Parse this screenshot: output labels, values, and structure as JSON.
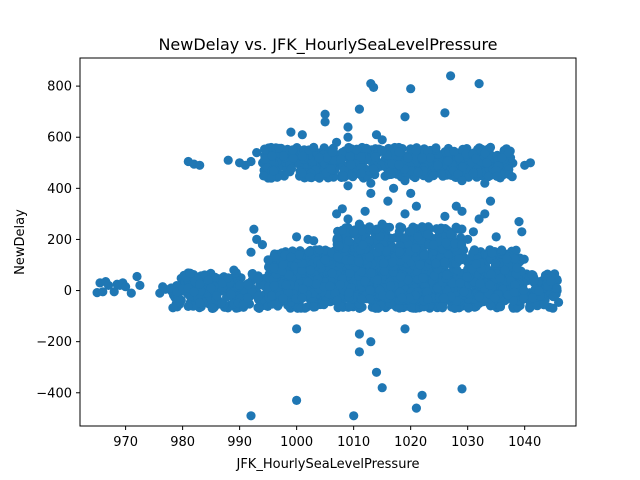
{
  "chart_data": {
    "type": "scatter",
    "title": "NewDelay vs. JFK_HourlySeaLevelPressure",
    "xlabel": "JFK_HourlySeaLevelPressure",
    "ylabel": "NewDelay",
    "xlim": [
      962.0,
      1049.0
    ],
    "ylim": [
      -530,
      910
    ],
    "xticks": [
      970,
      980,
      990,
      1000,
      1010,
      1020,
      1030,
      1040
    ],
    "yticks": [
      -400,
      -200,
      0,
      200,
      400,
      600,
      800
    ],
    "ytick_labels": [
      "−400",
      "−200",
      "0",
      "200",
      "400",
      "600",
      "800"
    ],
    "marker_color": "#1f77b4",
    "grid": false,
    "series": [
      {
        "name": "NewDelay",
        "points": [
          [
            965,
            -8
          ],
          [
            965.5,
            30
          ],
          [
            966,
            -5
          ],
          [
            966.5,
            35
          ],
          [
            967,
            20
          ],
          [
            968,
            -5
          ],
          [
            968.5,
            25
          ],
          [
            969,
            20
          ],
          [
            969.5,
            30
          ],
          [
            970,
            15
          ],
          [
            971,
            -10
          ],
          [
            972,
            55
          ],
          [
            972.5,
            20
          ],
          [
            976,
            -10
          ],
          [
            976.5,
            15
          ],
          [
            977,
            5
          ],
          [
            978,
            10
          ],
          [
            979,
            -5
          ],
          [
            980,
            8
          ],
          [
            981,
            10
          ],
          [
            982,
            -5
          ],
          [
            983,
            25
          ],
          [
            984,
            60
          ],
          [
            984.5,
            40
          ],
          [
            985,
            10
          ],
          [
            986,
            -20
          ],
          [
            987,
            30
          ],
          [
            988,
            50
          ],
          [
            989,
            80
          ],
          [
            990,
            20
          ],
          [
            992,
            150
          ],
          [
            993,
            200
          ],
          [
            992.5,
            240
          ],
          [
            994,
            180
          ],
          [
            995,
            120
          ],
          [
            996,
            90
          ],
          [
            998,
            140
          ],
          [
            999,
            130
          ],
          [
            1000,
            210
          ],
          [
            1002,
            200
          ],
          [
            1003,
            195
          ],
          [
            1005,
            120
          ],
          [
            1004,
            160
          ],
          [
            1007,
            300
          ],
          [
            1008,
            320
          ],
          [
            1009,
            280
          ],
          [
            1010,
            230
          ],
          [
            1011,
            260
          ],
          [
            1012,
            310
          ],
          [
            1013,
            380
          ],
          [
            1014,
            240
          ],
          [
            1015,
            260
          ],
          [
            1016,
            350
          ],
          [
            1017,
            400
          ],
          [
            1018,
            230
          ],
          [
            1019,
            300
          ],
          [
            1020,
            380
          ],
          [
            1021,
            330
          ],
          [
            1022,
            250
          ],
          [
            1023,
            220
          ],
          [
            1024,
            180
          ],
          [
            1025,
            240
          ],
          [
            1026,
            290
          ],
          [
            1027,
            220
          ],
          [
            1028,
            330
          ],
          [
            1029,
            310
          ],
          [
            1030,
            200
          ],
          [
            1031,
            230
          ],
          [
            1032,
            280
          ],
          [
            1033,
            300
          ],
          [
            1034,
            350
          ],
          [
            1035,
            210
          ],
          [
            1039,
            270
          ],
          [
            1039.5,
            230
          ],
          [
            1000,
            -150
          ],
          [
            1011,
            -170
          ],
          [
            1011,
            -240
          ],
          [
            1013,
            -200
          ],
          [
            1014,
            -320
          ],
          [
            1015,
            -380
          ],
          [
            1019,
            -150
          ],
          [
            1021,
            -460
          ],
          [
            1022,
            -410
          ],
          [
            1029,
            -385
          ],
          [
            992,
            -490
          ],
          [
            1000,
            -430
          ],
          [
            1010,
            -490
          ],
          [
            981,
            505
          ],
          [
            982,
            495
          ],
          [
            983,
            490
          ],
          [
            988,
            510
          ],
          [
            990,
            500
          ],
          [
            991,
            490
          ],
          [
            992,
            505
          ],
          [
            993,
            540
          ],
          [
            999,
            620
          ],
          [
            1001,
            610
          ],
          [
            1003,
            560
          ],
          [
            1005,
            690
          ],
          [
            1005,
            660
          ],
          [
            1007,
            580
          ],
          [
            1009,
            600
          ],
          [
            1009,
            640
          ],
          [
            1011,
            710
          ],
          [
            1013,
            810
          ],
          [
            1013.5,
            795
          ],
          [
            1014,
            610
          ],
          [
            1015,
            590
          ],
          [
            1019,
            680
          ],
          [
            1020,
            790
          ],
          [
            1022,
            520
          ],
          [
            1026,
            695
          ],
          [
            1027,
            840
          ],
          [
            1032,
            810
          ],
          [
            1034,
            560
          ],
          [
            1036,
            520
          ],
          [
            1040,
            490
          ],
          [
            1041,
            500
          ],
          [
            1009,
            410
          ],
          [
            1013,
            420
          ],
          [
            1019,
            430
          ],
          [
            1029,
            430
          ],
          [
            1031,
            460
          ],
          [
            1033,
            420
          ],
          [
            1004,
            440
          ],
          [
            1024,
            450
          ]
        ]
      }
    ],
    "dense_bands": [
      {
        "x_from": 978,
        "x_to": 1046,
        "y_from": -70,
        "y_to": 70
      },
      {
        "x_from": 995,
        "x_to": 1040,
        "y_from": -40,
        "y_to": 160
      },
      {
        "x_from": 1007,
        "x_to": 1029,
        "y_from": 100,
        "y_to": 250
      },
      {
        "x_from": 994,
        "x_to": 1038,
        "y_from": 440,
        "y_to": 560
      }
    ]
  }
}
